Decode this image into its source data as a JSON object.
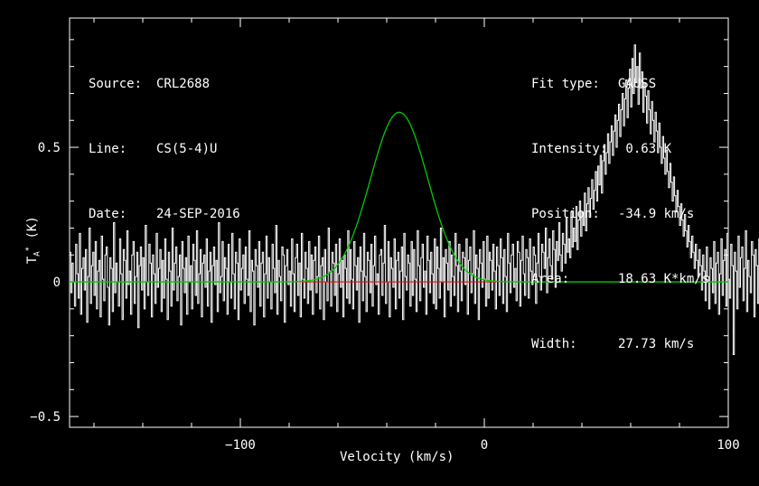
{
  "header": {
    "left": [
      {
        "key": "Source:",
        "value": "CRL2688"
      },
      {
        "key": "Line:",
        "value": "CS(5-4)U"
      },
      {
        "key": "Date:",
        "value": "24-SEP-2016"
      }
    ],
    "right": [
      {
        "key": "Fit type:",
        "value": "GAUSS"
      },
      {
        "key": "Intensity:",
        "value": " 0.63 K"
      },
      {
        "key": "Position:",
        "value": "-34.9 km/s"
      },
      {
        "key": "Area:",
        "value": "18.63 K*km/s"
      },
      {
        "key": "Width:",
        "value": "27.73 km/s"
      }
    ]
  },
  "chart_data": {
    "type": "line",
    "xlabel": "Velocity (km/s)",
    "ylabel": "T_A* (K)",
    "xlim": [
      -170,
      100
    ],
    "ylim": [
      -0.54,
      0.98
    ],
    "x_ticks": [
      -100,
      0,
      100
    ],
    "x_tick_labels": [
      "−100",
      "0",
      "100"
    ],
    "y_ticks": [
      -0.5,
      0,
      0.5
    ],
    "y_tick_labels": [
      "−0.5",
      "0",
      "0.5"
    ],
    "grid": false,
    "series": [
      {
        "role": "spectrum",
        "color": "#ffffff",
        "style": "histogram",
        "x_start": -170,
        "x_step": 0.5,
        "y": [
          0.11,
          -0.04,
          0.07,
          0.0,
          -0.09,
          0.14,
          0.03,
          -0.06,
          0.18,
          -0.12,
          0.05,
          0.09,
          -0.03,
          0.12,
          -0.15,
          0.02,
          0.2,
          -0.08,
          0.06,
          0.11,
          -0.05,
          0.15,
          -0.1,
          0.04,
          0.08,
          -0.13,
          0.17,
          0.01,
          -0.07,
          0.1,
          0.13,
          -0.02,
          -0.16,
          0.09,
          0.05,
          -0.11,
          0.22,
          -0.04,
          0.07,
          0.0,
          -0.09,
          0.16,
          0.03,
          -0.14,
          0.12,
          0.08,
          -0.06,
          0.19,
          -0.01,
          0.04,
          -0.12,
          0.1,
          0.15,
          -0.08,
          0.02,
          0.11,
          -0.17,
          0.06,
          0.13,
          -0.03,
          0.09,
          -0.1,
          0.21,
          0.0,
          -0.05,
          0.14,
          0.07,
          -0.13,
          0.1,
          0.03,
          -0.08,
          0.18,
          -0.02,
          0.05,
          0.12,
          -0.11,
          0.08,
          -0.06,
          0.16,
          0.01,
          -0.14,
          0.11,
          0.04,
          -0.09,
          0.2,
          -0.03,
          0.07,
          0.13,
          -0.07,
          0.02,
          0.1,
          -0.16,
          0.15,
          0.05,
          -0.04,
          0.09,
          -0.12,
          0.17,
          0.0,
          0.06,
          -0.1,
          0.14,
          0.08,
          -0.05,
          0.19,
          -0.08,
          0.03,
          0.12,
          -0.13,
          0.07,
          0.1,
          -0.02,
          0.16,
          -0.09,
          0.04,
          0.11,
          -0.15,
          0.06,
          0.13,
          -0.01,
          0.08,
          -0.11,
          0.22,
          -0.04,
          0.02,
          0.15,
          -0.07,
          0.09,
          0.05,
          -0.12,
          0.14,
          0.0,
          -0.06,
          0.18,
          0.03,
          -0.1,
          0.11,
          0.07,
          -0.14,
          0.16,
          -0.03,
          0.05,
          0.1,
          -0.08,
          0.13,
          0.01,
          -0.05,
          0.19,
          -0.11,
          0.08,
          0.04,
          -0.16,
          0.12,
          0.06,
          -0.02,
          0.15,
          -0.09,
          0.07,
          0.11,
          -0.13,
          0.03,
          0.17,
          -0.06,
          0.09,
          0.0,
          -0.1,
          0.14,
          0.05,
          -0.04,
          0.21,
          -0.12,
          0.08,
          0.02,
          -0.07,
          0.13,
          0.1,
          -0.15,
          0.06,
          0.12,
          -0.01,
          0.04,
          -0.09,
          0.16,
          0.03,
          -0.11,
          0.09,
          0.14,
          -0.05,
          0.07,
          -0.13,
          0.18,
          0.01,
          -0.06,
          0.11,
          0.05,
          -0.08,
          0.15,
          -0.03,
          0.1,
          -0.12,
          0.08,
          0.13,
          -0.04,
          0.02,
          0.17,
          -0.1,
          0.06,
          0.09,
          -0.14,
          0.12,
          0.0,
          -0.07,
          0.2,
          0.04,
          -0.09,
          0.11,
          0.07,
          -0.05,
          0.14,
          -0.11,
          0.03,
          0.16,
          -0.02,
          0.08,
          -0.13,
          0.1,
          0.05,
          -0.06,
          0.19,
          -0.08,
          0.12,
          0.01,
          -0.1,
          0.15,
          0.06,
          -0.03,
          0.09,
          -0.15,
          0.13,
          0.04,
          -0.07,
          0.18,
          0.02,
          -0.11,
          0.11,
          0.08,
          -0.04,
          0.14,
          -0.09,
          0.06,
          0.17,
          -0.01,
          0.03,
          -0.12,
          0.1,
          0.12,
          -0.05,
          0.07,
          0.21,
          -0.08,
          0.0,
          0.15,
          -0.13,
          0.09,
          0.05,
          -0.02,
          0.16,
          -0.1,
          0.08,
          0.11,
          -0.06,
          0.04,
          0.13,
          -0.14,
          0.18,
          0.02,
          -0.03,
          0.1,
          0.07,
          -0.09,
          0.15,
          -0.05,
          0.12,
          0.01,
          -0.11,
          0.19,
          0.06,
          -0.07,
          0.09,
          0.14,
          -0.02,
          0.04,
          -0.12,
          0.17,
          0.08,
          -0.04,
          0.11,
          0.03,
          -0.08,
          0.16,
          -0.1,
          0.13,
          0.05,
          -0.06,
          0.2,
          0.0,
          0.09,
          -0.13,
          0.12,
          0.07,
          -0.03,
          0.15,
          -0.09,
          0.1,
          0.02,
          -0.05,
          0.18,
          0.06,
          -0.11,
          0.14,
          0.04,
          -0.07,
          0.11,
          0.09,
          -0.01,
          0.16,
          -0.12,
          0.08,
          0.13,
          -0.04,
          0.03,
          0.19,
          -0.08,
          0.1,
          0.05,
          -0.14,
          0.12,
          0.07,
          -0.02,
          0.15,
          0.01,
          -0.09,
          0.17,
          -0.06,
          0.11,
          0.08,
          -0.03,
          0.14,
          0.04,
          -0.1,
          0.13,
          0.06,
          -0.05,
          0.16,
          0.09,
          -0.08,
          0.12,
          0.02,
          -0.11,
          0.18,
          0.07,
          -0.04,
          0.1,
          0.14,
          -0.02,
          0.05,
          -0.07,
          0.15,
          0.11,
          -0.09,
          0.08,
          0.17,
          0.03,
          -0.05,
          0.12,
          0.09,
          -0.06,
          0.16,
          0.04,
          -0.01,
          0.13,
          0.1,
          -0.08,
          0.07,
          0.18,
          0.02,
          -0.03,
          0.14,
          0.11,
          0.05,
          0.2,
          -0.04,
          0.09,
          0.16,
          0.06,
          0.01,
          0.19,
          0.12,
          -0.02,
          0.15,
          0.08,
          0.22,
          0.1,
          0.04,
          0.18,
          0.14,
          0.07,
          0.24,
          0.11,
          0.16,
          0.09,
          0.26,
          0.13,
          0.2,
          0.15,
          0.28,
          0.12,
          0.23,
          0.3,
          0.17,
          0.26,
          0.21,
          0.33,
          0.19,
          0.29,
          0.35,
          0.24,
          0.31,
          0.38,
          0.27,
          0.34,
          0.41,
          0.3,
          0.43,
          0.36,
          0.47,
          0.33,
          0.45,
          0.51,
          0.4,
          0.48,
          0.55,
          0.44,
          0.52,
          0.58,
          0.47,
          0.56,
          0.62,
          0.5,
          0.6,
          0.66,
          0.54,
          0.64,
          0.7,
          0.58,
          0.68,
          0.75,
          0.61,
          0.72,
          0.79,
          0.65,
          0.83,
          0.7,
          0.88,
          0.74,
          0.8,
          0.66,
          0.85,
          0.72,
          0.78,
          0.63,
          0.74,
          0.69,
          0.59,
          0.71,
          0.64,
          0.55,
          0.67,
          0.6,
          0.52,
          0.63,
          0.56,
          0.48,
          0.59,
          0.5,
          0.44,
          0.54,
          0.46,
          0.4,
          0.49,
          0.41,
          0.35,
          0.44,
          0.37,
          0.3,
          0.39,
          0.32,
          0.26,
          0.34,
          0.28,
          0.21,
          0.29,
          0.23,
          0.17,
          0.25,
          0.19,
          0.13,
          0.21,
          0.15,
          0.09,
          0.17,
          0.11,
          0.05,
          0.14,
          0.08,
          0.02,
          0.12,
          0.06,
          -0.03,
          0.1,
          0.04,
          -0.07,
          0.13,
          0.02,
          -0.1,
          0.09,
          0.05,
          -0.04,
          0.15,
          -0.08,
          0.07,
          0.11,
          -0.12,
          0.03,
          0.16,
          -0.05,
          0.08,
          0.12,
          -0.09,
          0.18,
          0.01,
          -0.06,
          0.14,
          0.06,
          -0.27,
          0.11,
          0.04,
          -0.1,
          0.17,
          -0.02,
          0.09,
          0.13,
          -0.07,
          0.05,
          0.19,
          -0.11,
          0.08,
          0.02,
          -0.04,
          0.15,
          0.1,
          -0.13,
          0.12,
          0.06,
          -0.08,
          0.16,
          0.03,
          -0.05,
          0.21,
          -0.09,
          0.07,
          0.11,
          -0.15,
          0.13,
          0.04,
          -0.02,
          0.18,
          -0.07,
          0.09,
          0.0,
          -0.36,
          0.14,
          0.06,
          -0.03,
          0.17,
          -0.1,
          0.12,
          0.05,
          -0.06,
          0.2,
          0.02,
          -0.12,
          0.1,
          0.15,
          -0.04,
          0.08,
          -0.09,
          0.16,
          0.03,
          -0.14,
          0.13,
          0.07,
          -0.01,
          0.11,
          -0.08,
          0.19,
          0.04,
          -0.05,
          0.14,
          0.09,
          -0.11,
          0.12,
          0.01,
          -0.06,
          0.17,
          -0.03,
          0.1,
          0.06,
          -0.13,
          0.15,
          0.02,
          -0.07,
          0.21,
          0.08,
          -0.1,
          0.11,
          0.05,
          -0.04,
          0.16,
          -0.09,
          0.13,
          0.0,
          -0.15,
          0.18,
          0.07,
          -0.02,
          0.1,
          -0.12,
          0.14,
          0.04,
          -0.06,
          0.19,
          0.03,
          -0.08,
          0.12,
          0.09,
          -0.11,
          0.15,
          -0.05,
          0.08,
          0.13,
          -0.14,
          0.06,
          0.17,
          -0.03,
          0.1,
          0.01,
          -0.09,
          0.16,
          0.05,
          -0.07,
          0.2,
          -0.12,
          0.11,
          0.07,
          -0.04,
          0.14,
          0.02,
          -0.1,
          0.18,
          0.08,
          -0.06,
          0.12,
          -0.15,
          0.15,
          0.04,
          -0.02,
          0.09,
          0.13,
          -0.08,
          0.17,
          -0.11,
          0.06,
          0.1,
          -0.05,
          0.19,
          0.03,
          -0.13,
          0.14,
          0.07,
          -0.01,
          0.11,
          -0.09,
          0.16,
          0.05,
          -0.07,
          0.21,
          -0.03,
          0.08,
          0.12,
          -0.12,
          0.15,
          0.0,
          -0.06,
          0.18,
          0.09,
          -0.1,
          0.13,
          0.04,
          -0.04,
          0.17,
          -0.14,
          0.1,
          0.06,
          -0.08,
          0.2,
          0.02,
          -0.05,
          0.14,
          0.11,
          -0.11,
          0.07,
          0.16,
          -0.02,
          0.09,
          -0.13,
          0.19,
          0.03,
          -0.07,
          0.12,
          0.08,
          -0.09,
          0.15,
          0.05,
          -0.04,
          0.18,
          -0.1,
          0.11,
          0.01,
          -0.15,
          0.14,
          0.07,
          -0.03,
          0.17,
          0.1,
          -0.12,
          0.13,
          0.04,
          -0.06,
          0.21,
          -0.08,
          0.09,
          0.12,
          -0.11,
          0.06,
          0.16,
          -0.01,
          0.08,
          -0.14,
          0.18,
          0.03,
          -0.05,
          0.15,
          0.1,
          -0.09,
          0.13,
          0.02,
          -0.07,
          0.19,
          -0.04,
          0.11,
          0.06,
          -0.13,
          0.16,
          0.08,
          -0.03,
          0.12,
          -0.1,
          0.2,
          0.05,
          -0.06,
          0.14,
          0.09,
          -0.12,
          0.17,
          0.01,
          -0.08,
          0.13,
          0.07,
          -0.02,
          0.18,
          -0.11,
          0.1,
          0.04,
          -0.05,
          0.15,
          0.12,
          -0.14,
          0.08,
          0.19,
          -0.03,
          0.06,
          -0.09,
          0.16,
          0.11,
          -0.07,
          0.14,
          0.02,
          -0.1,
          0.21,
          0.07,
          -0.04,
          0.13,
          0.09,
          -0.12,
          0.17,
          0.03,
          -0.06,
          0.15,
          -0.08,
          0.1,
          0.05,
          -0.13,
          0.18,
          0.08,
          -0.02,
          0.12,
          0.06,
          -0.09,
          0.16,
          -0.05,
          0.11,
          0.14,
          -0.11,
          0.04,
          0.2,
          0.01,
          -0.07,
          0.13,
          0.1,
          -0.03,
          0.17,
          -0.1,
          0.08,
          0.12,
          -0.14,
          0.15,
          0.06,
          -0.05,
          0.19,
          0.03,
          -0.08,
          0.11,
          0.09,
          -0.01,
          0.14,
          -0.12,
          0.16,
          0.07,
          -0.06,
          0.22,
          0.04,
          0.1,
          -0.09,
          0.13
        ]
      },
      {
        "role": "gaussian-fit",
        "color": "#00cc00",
        "amplitude": 0.63,
        "center": -34.9,
        "fwhm": 27.73
      },
      {
        "role": "baseline-window",
        "color": "#dd1111",
        "x": [
          -75,
          5
        ],
        "y": 0
      }
    ]
  }
}
